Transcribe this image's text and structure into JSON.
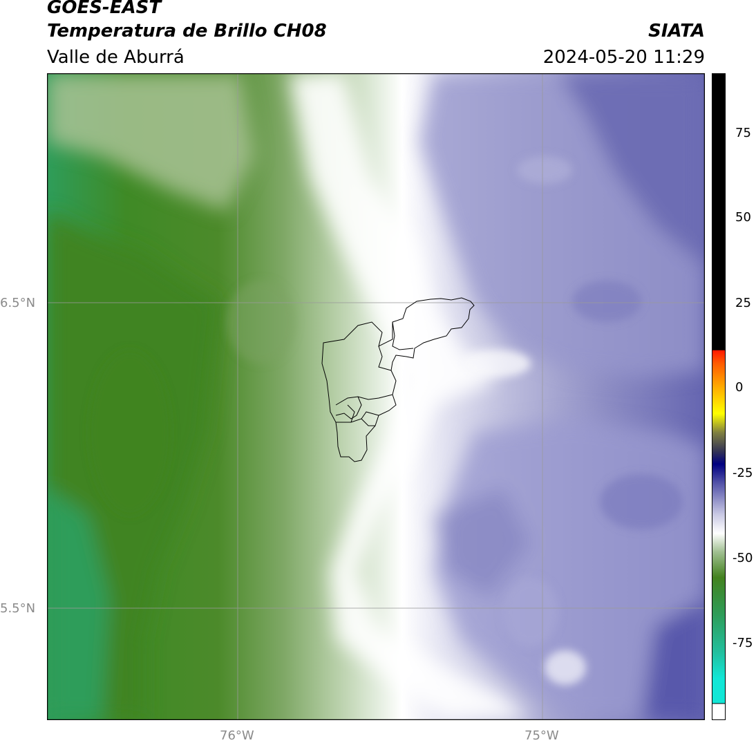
{
  "header": {
    "line1": "GOES-EAST",
    "line2": "Temperatura de Brillo CH08",
    "line3": "Valle de Aburrá",
    "agency": "SIATA",
    "timestamp": "2024-05-20 11:29"
  },
  "map": {
    "lat_labels": [
      "6.5°N",
      "5.5°N"
    ],
    "lon_labels": [
      "76°W",
      "75°W"
    ],
    "gridline_color": "#9a9a9a",
    "boundary_color": "#000000"
  },
  "colorbar": {
    "tick_labels": [
      "75",
      "50",
      "25",
      "0",
      "-25",
      "-50",
      "-75"
    ],
    "palette": {
      "cyan": "#12e6d6",
      "sea_green": "#2ea564",
      "forest_green": "#43821f",
      "pale_green": "#dce8d4",
      "white": "#ffffff",
      "lavender": "#c9c9e4",
      "indigo": "#5252a8",
      "navy": "#000080",
      "yellow": "#ffff00",
      "orange": "#ff8c00",
      "red": "#ff1a00",
      "black": "#000000"
    }
  }
}
